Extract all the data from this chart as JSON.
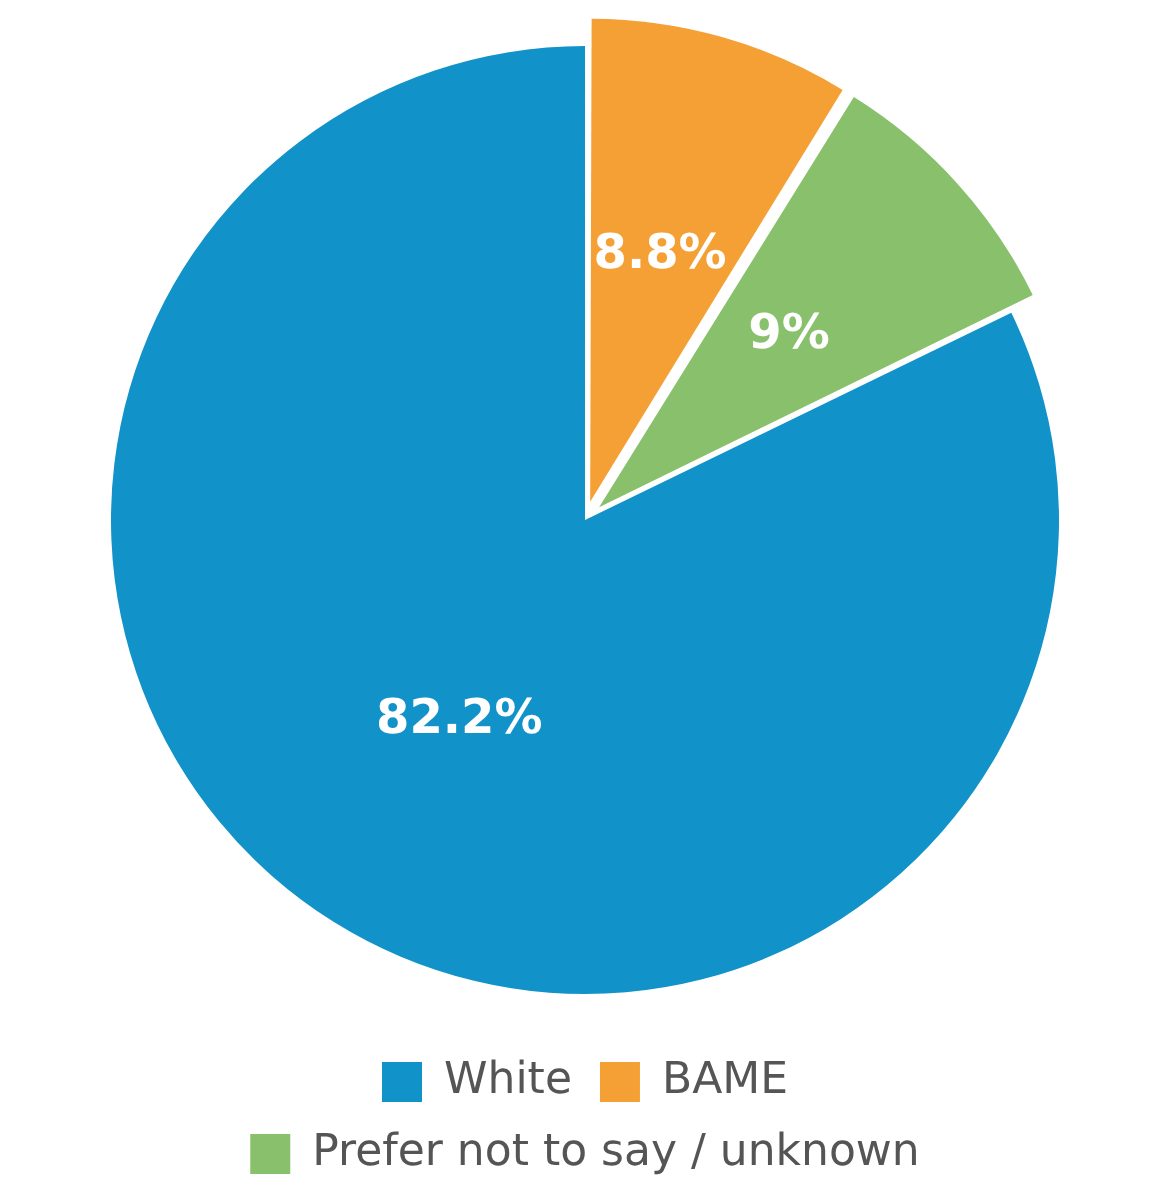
{
  "chart_data": {
    "type": "pie",
    "categories": [
      "White",
      "BAME",
      "Prefer not to say / unknown"
    ],
    "values": [
      82.2,
      8.8,
      9
    ],
    "colors": [
      "#1192c9",
      "#f4a035",
      "#88c06b"
    ],
    "value_labels": [
      "82.2%",
      "8.8%",
      "9%"
    ],
    "legend": "bottom"
  }
}
